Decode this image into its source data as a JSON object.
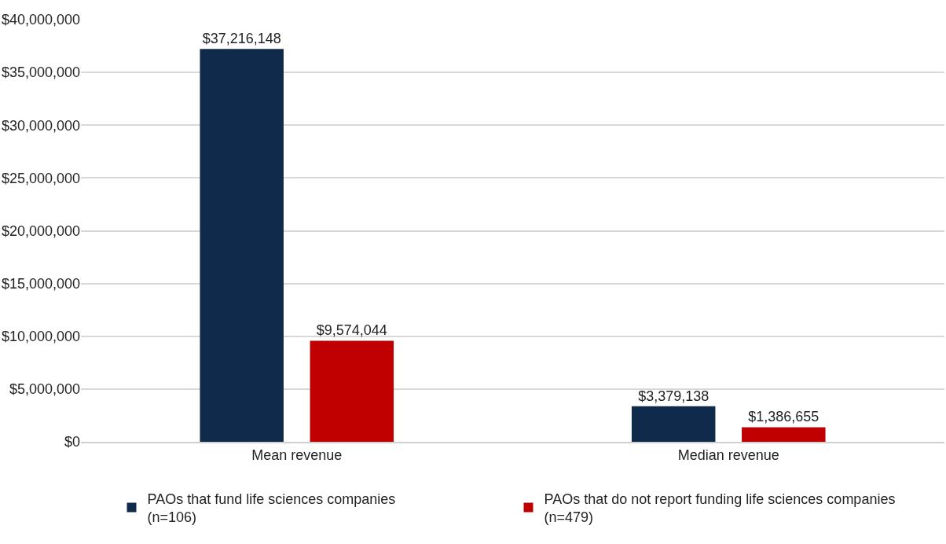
{
  "chart_data": {
    "type": "bar",
    "categories": [
      "Mean revenue",
      "Median revenue"
    ],
    "series": [
      {
        "name": "PAOs that fund life sciences companies\n(n=106)",
        "color": "#0f2a4a",
        "values": [
          37216148,
          3379138
        ],
        "value_labels": [
          "$37,216,148",
          "$3,379,138"
        ]
      },
      {
        "name": "PAOs that do not report funding life sciences companies\n(n=479)",
        "color": "#c00000",
        "values": [
          9574044,
          1386655
        ],
        "value_labels": [
          "$9,574,044",
          "$1,386,655"
        ]
      }
    ],
    "ylim": [
      0,
      40000000
    ],
    "yticks": [
      {
        "value": 0,
        "label": "$0"
      },
      {
        "value": 5000000,
        "label": "$5,000,000"
      },
      {
        "value": 10000000,
        "label": "$10,000,000"
      },
      {
        "value": 15000000,
        "label": "$15,000,000"
      },
      {
        "value": 20000000,
        "label": "$20,000,000"
      },
      {
        "value": 25000000,
        "label": "$25,000,000"
      },
      {
        "value": 30000000,
        "label": "$30,000,000"
      },
      {
        "value": 35000000,
        "label": "$35,000,000"
      },
      {
        "value": 40000000,
        "label": "$40,000,000"
      }
    ],
    "grid": "y",
    "legend": "bottom"
  }
}
